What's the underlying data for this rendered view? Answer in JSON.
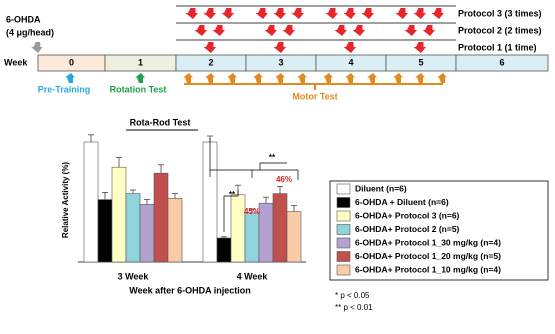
{
  "timeline": {
    "drug": "6-OHDA",
    "dose": "(4 μg/head)",
    "axis_label": "Week",
    "weeks": [
      "0",
      "1",
      "2",
      "3",
      "4",
      "5",
      "6"
    ],
    "protocols": [
      "Protocol 3 (3 times)",
      "Protocol 2 (2 times)",
      "Protocol 1 (1 time)"
    ],
    "events": [
      "Pre-Training",
      "Rotation Test",
      "Motor Test"
    ]
  },
  "chart_data": {
    "type": "bar",
    "title": "Rota-Rod Test",
    "x_label": "Week after 6-OHDA injection",
    "y_label": "Relative Activity (%)",
    "categories": [
      "3 Week",
      "4 Week"
    ],
    "ylim": [
      0,
      120
    ],
    "series": [
      {
        "name": "Diluent (n=6)",
        "color": "#ffffff",
        "values": [
          100,
          100
        ],
        "errors": [
          6,
          5
        ]
      },
      {
        "name": "6-OHDA + Diluent (n=6)",
        "color": "#000000",
        "values": [
          52,
          20
        ],
        "errors": [
          6,
          1
        ]
      },
      {
        "name": "6-OHDA+ Protocol 3 (n=6)",
        "color": "#ffffc4",
        "values": [
          79,
          56
        ],
        "errors": [
          8,
          8
        ]
      },
      {
        "name": "6-OHDA+ Protocol 2 (n=5)",
        "color": "#8fd3dc",
        "values": [
          57,
          41
        ],
        "errors": [
          3,
          3
        ]
      },
      {
        "name": "6-OHDA+ Protocol 1_30 mg/kg (n=4)",
        "color": "#b3a2cf",
        "values": [
          48,
          49
        ],
        "errors": [
          4,
          5
        ]
      },
      {
        "name": "6-OHDA+ Protocol 1_20 mg/kg (n=5)",
        "color": "#c0504d",
        "values": [
          74,
          57
        ],
        "errors": [
          7,
          6
        ]
      },
      {
        "name": "6-OHDA+ Protocol 1_10 mg/kg (n=4)",
        "color": "#f9cba6",
        "values": [
          53,
          42
        ],
        "errors": [
          4,
          5
        ]
      }
    ],
    "annotations": [
      "**",
      "**",
      "45%",
      "46%"
    ],
    "footnotes": [
      "* p < 0.05",
      "** p < 0.01"
    ]
  }
}
